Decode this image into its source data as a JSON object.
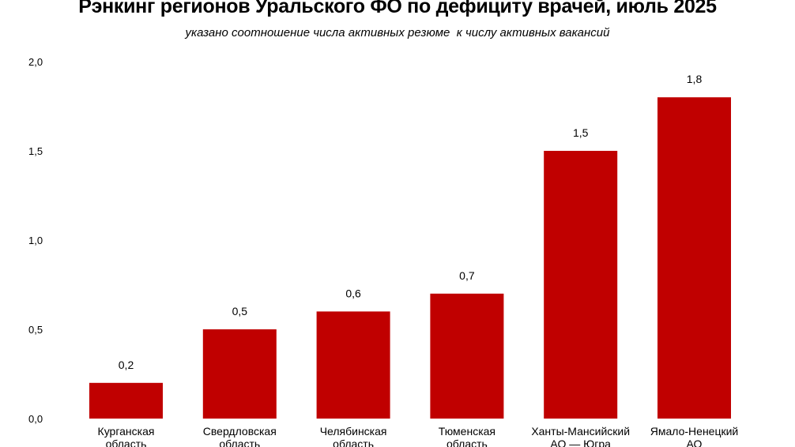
{
  "chart_data": {
    "type": "bar",
    "title": "Рэнкинг регионов Уральского ФО по дефициту врачей, июль 2025",
    "subtitle": "указано соотношение числа активных резюме  к числу активных вакансий",
    "categories": [
      [
        "Курганская",
        "область"
      ],
      [
        "Свердловская",
        "область"
      ],
      [
        "Челябинская",
        "область"
      ],
      [
        "Тюменская",
        "область"
      ],
      [
        "Ханты-Мансийский",
        "АО — Югра"
      ],
      [
        "Ямало-Ненецкий",
        "АО"
      ]
    ],
    "values": [
      0.2,
      0.5,
      0.6,
      0.7,
      1.5,
      1.8
    ],
    "data_labels": [
      "0,2",
      "0,5",
      "0,6",
      "0,7",
      "1,5",
      "1,8"
    ],
    "yticks": [
      0,
      0.5,
      1.0,
      1.5,
      2.0
    ],
    "ytick_labels": [
      "0,0",
      "0,5",
      "1,0",
      "1,5",
      "2,0"
    ],
    "ylim": [
      0,
      2.0
    ],
    "xlabel": "",
    "ylabel": "",
    "grid": false,
    "bar_color": "#c00000"
  }
}
